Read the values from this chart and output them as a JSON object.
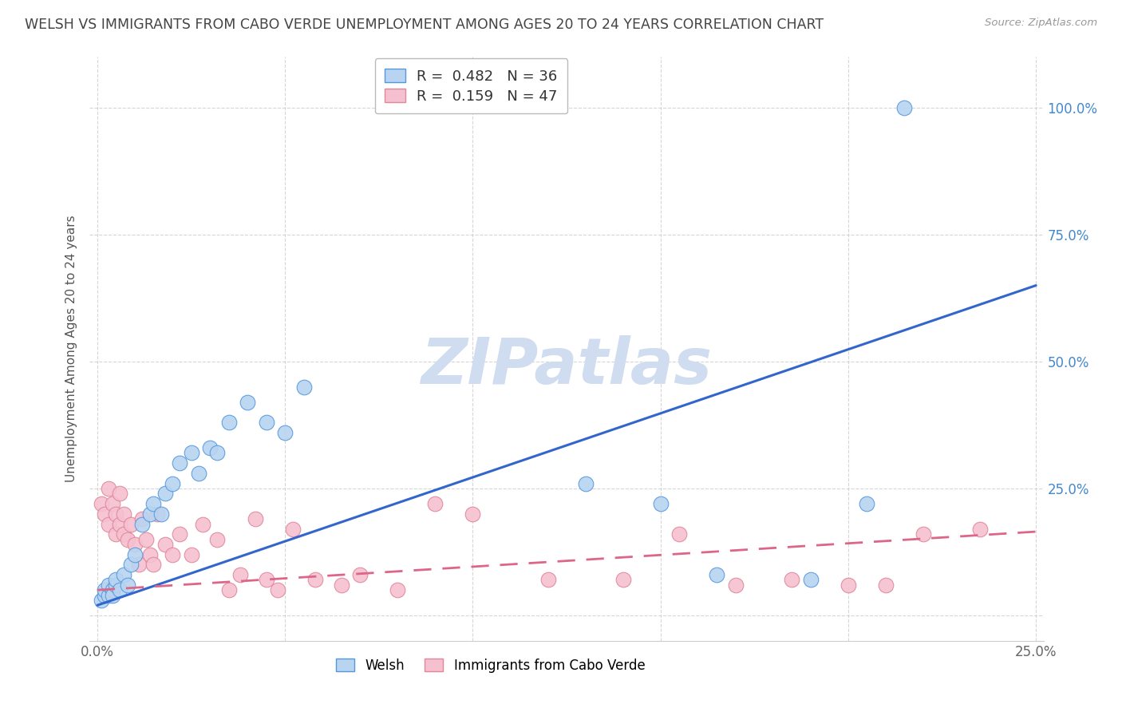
{
  "title": "WELSH VS IMMIGRANTS FROM CABO VERDE UNEMPLOYMENT AMONG AGES 20 TO 24 YEARS CORRELATION CHART",
  "source": "Source: ZipAtlas.com",
  "ylabel": "Unemployment Among Ages 20 to 24 years",
  "xlim": [
    -0.002,
    0.252
  ],
  "ylim": [
    -0.05,
    1.1
  ],
  "xticks": [
    0.0,
    0.05,
    0.1,
    0.15,
    0.2,
    0.25
  ],
  "xtick_labels": [
    "0.0%",
    "",
    "",
    "",
    "",
    "25.0%"
  ],
  "yticks": [
    0.0,
    0.25,
    0.5,
    0.75,
    1.0
  ],
  "ytick_labels_right": [
    "",
    "25.0%",
    "50.0%",
    "75.0%",
    "100.0%"
  ],
  "welsh_R": "0.482",
  "welsh_N": "36",
  "cabo_R": "0.159",
  "cabo_N": "47",
  "welsh_color": "#b8d4f0",
  "welsh_edge_color": "#5599dd",
  "welsh_line_color": "#3366cc",
  "cabo_color": "#f5c0d0",
  "cabo_edge_color": "#e08898",
  "cabo_line_color": "#dd6688",
  "watermark": "ZIPatlas",
  "watermark_color": "#d0ddf0",
  "welsh_trend_x0": 0.0,
  "welsh_trend_y0": 0.02,
  "welsh_trend_x1": 0.25,
  "welsh_trend_y1": 0.65,
  "cabo_trend_x0": 0.0,
  "cabo_trend_y0": 0.05,
  "cabo_trend_x1": 0.25,
  "cabo_trend_y1": 0.165,
  "welsh_x": [
    0.001,
    0.002,
    0.002,
    0.003,
    0.003,
    0.004,
    0.004,
    0.005,
    0.005,
    0.006,
    0.007,
    0.008,
    0.009,
    0.01,
    0.012,
    0.014,
    0.015,
    0.017,
    0.018,
    0.02,
    0.022,
    0.025,
    0.027,
    0.03,
    0.032,
    0.035,
    0.04,
    0.045,
    0.05,
    0.055,
    0.13,
    0.15,
    0.165,
    0.19,
    0.205,
    0.215
  ],
  "welsh_y": [
    0.03,
    0.04,
    0.05,
    0.04,
    0.06,
    0.05,
    0.04,
    0.06,
    0.07,
    0.05,
    0.08,
    0.06,
    0.1,
    0.12,
    0.18,
    0.2,
    0.22,
    0.2,
    0.24,
    0.26,
    0.3,
    0.32,
    0.28,
    0.33,
    0.32,
    0.38,
    0.42,
    0.38,
    0.36,
    0.45,
    0.26,
    0.22,
    0.08,
    0.07,
    0.22,
    1.0
  ],
  "cabo_x": [
    0.001,
    0.002,
    0.003,
    0.003,
    0.004,
    0.005,
    0.005,
    0.006,
    0.006,
    0.007,
    0.007,
    0.008,
    0.009,
    0.01,
    0.011,
    0.012,
    0.013,
    0.014,
    0.015,
    0.016,
    0.018,
    0.02,
    0.022,
    0.025,
    0.028,
    0.032,
    0.035,
    0.038,
    0.042,
    0.045,
    0.048,
    0.052,
    0.058,
    0.065,
    0.07,
    0.08,
    0.09,
    0.1,
    0.12,
    0.14,
    0.155,
    0.17,
    0.185,
    0.2,
    0.21,
    0.22,
    0.235
  ],
  "cabo_y": [
    0.22,
    0.2,
    0.25,
    0.18,
    0.22,
    0.2,
    0.16,
    0.24,
    0.18,
    0.2,
    0.16,
    0.15,
    0.18,
    0.14,
    0.1,
    0.19,
    0.15,
    0.12,
    0.1,
    0.2,
    0.14,
    0.12,
    0.16,
    0.12,
    0.18,
    0.15,
    0.05,
    0.08,
    0.19,
    0.07,
    0.05,
    0.17,
    0.07,
    0.06,
    0.08,
    0.05,
    0.22,
    0.2,
    0.07,
    0.07,
    0.16,
    0.06,
    0.07,
    0.06,
    0.06,
    0.16,
    0.17
  ]
}
